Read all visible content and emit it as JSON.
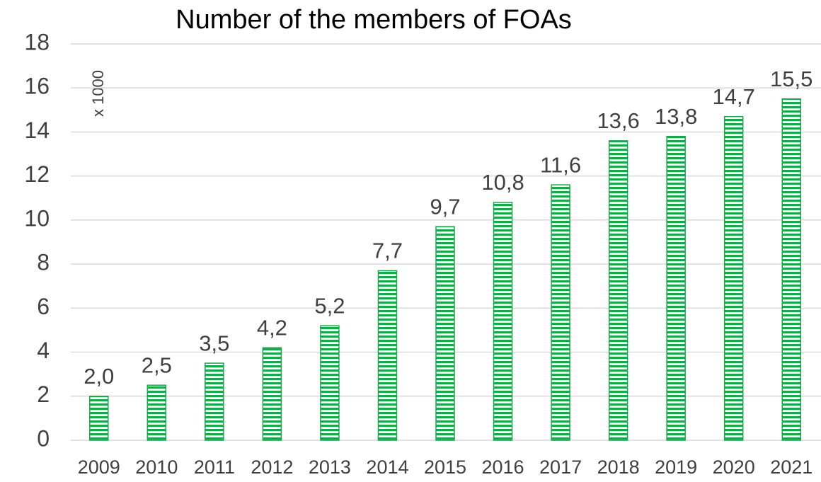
{
  "chart_data": {
    "type": "bar",
    "title": "Number of the members of FOAs",
    "annotation": "x 1000",
    "categories": [
      "2009",
      "2010",
      "2011",
      "2012",
      "2013",
      "2014",
      "2015",
      "2016",
      "2017",
      "2018",
      "2019",
      "2020",
      "2021"
    ],
    "values": [
      2.0,
      2.5,
      3.5,
      4.2,
      5.2,
      7.7,
      9.7,
      10.8,
      11.6,
      13.6,
      13.8,
      14.7,
      15.5
    ],
    "value_labels": [
      "2,0",
      "2,5",
      "3,5",
      "4,2",
      "5,2",
      "7,7",
      "9,7",
      "10,8",
      "11,6",
      "13,6",
      "13,8",
      "14,7",
      "15,5"
    ],
    "color": "#1aa64a",
    "ylim": [
      0,
      18
    ],
    "yticks": [
      0,
      2,
      4,
      6,
      8,
      10,
      12,
      14,
      16,
      18
    ],
    "grid": true
  }
}
